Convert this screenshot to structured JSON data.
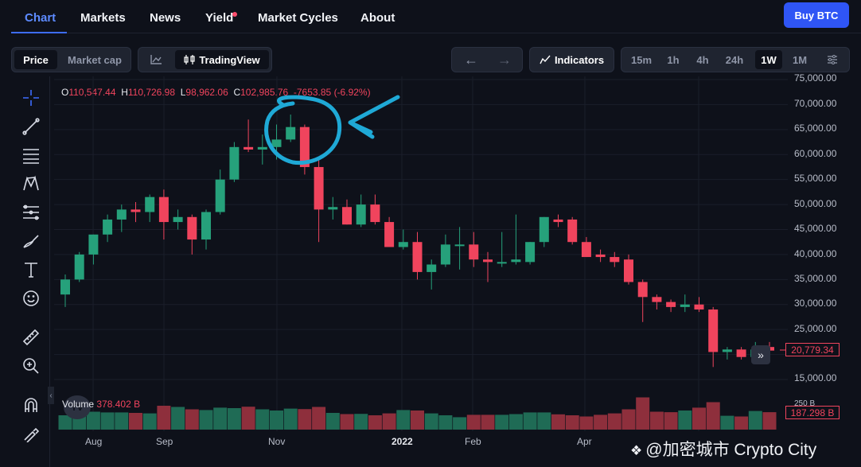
{
  "nav": {
    "items": [
      "Chart",
      "Markets",
      "News",
      "Yield",
      "Market Cycles",
      "About"
    ],
    "active": "Chart",
    "buy_label": "Buy BTC"
  },
  "toolbar": {
    "price_label": "Price",
    "marketcap_label": "Market cap",
    "tradingview_label": "TradingView",
    "indicators_label": "Indicators",
    "timeframes": [
      "15m",
      "1h",
      "4h",
      "24h",
      "1W",
      "1M"
    ],
    "active_timeframe": "1W"
  },
  "ohlc": {
    "o_key": "O",
    "o": "110,547.44",
    "h_key": "H",
    "h": "110,726.98",
    "l_key": "L",
    "l": "98,962.06",
    "c_key": "C",
    "c": "102,985.76",
    "change": "-7653.85 (-6.92%)"
  },
  "volume": {
    "label": "Volume",
    "value": "378.402 B"
  },
  "price_axis": {
    "ticks": [
      "75,000.00",
      "70,000.00",
      "65,000.00",
      "60,000.00",
      "55,000.00",
      "50,000.00",
      "45,000.00",
      "40,000.00",
      "35,000.00",
      "30,000.00",
      "25,000.00",
      "15,000.00"
    ],
    "last_price": "20,779.34",
    "volume_tag": "187.298 B",
    "vol_tick": "250 B"
  },
  "time_axis": [
    "Aug",
    "Sep",
    "Nov",
    "2022",
    "Feb",
    "Apr"
  ],
  "watermark": "@加密城市 Crypto City",
  "colors": {
    "up": "#26a17b",
    "down": "#f0445d",
    "annotation": "#1fa9d6",
    "accent": "#2f55f5"
  },
  "chart_data": {
    "type": "candlestick",
    "ylim": [
      15000,
      75000
    ],
    "candles": [
      {
        "o": 32000,
        "h": 36000,
        "l": 29500,
        "c": 35000
      },
      {
        "o": 35000,
        "h": 40500,
        "l": 34500,
        "c": 40000
      },
      {
        "o": 40000,
        "h": 44000,
        "l": 38000,
        "c": 44000
      },
      {
        "o": 44000,
        "h": 48000,
        "l": 42500,
        "c": 47000
      },
      {
        "o": 47000,
        "h": 50000,
        "l": 44500,
        "c": 49000
      },
      {
        "o": 49000,
        "h": 50500,
        "l": 46500,
        "c": 48500
      },
      {
        "o": 48500,
        "h": 52000,
        "l": 46500,
        "c": 51500
      },
      {
        "o": 51500,
        "h": 53000,
        "l": 43000,
        "c": 46500
      },
      {
        "o": 46500,
        "h": 49000,
        "l": 45000,
        "c": 47500
      },
      {
        "o": 47500,
        "h": 48000,
        "l": 40000,
        "c": 43000
      },
      {
        "o": 43000,
        "h": 49000,
        "l": 41000,
        "c": 48500
      },
      {
        "o": 48500,
        "h": 57000,
        "l": 48000,
        "c": 55000
      },
      {
        "o": 55000,
        "h": 62500,
        "l": 54500,
        "c": 61500
      },
      {
        "o": 61500,
        "h": 67000,
        "l": 60500,
        "c": 61000
      },
      {
        "o": 61000,
        "h": 64000,
        "l": 58000,
        "c": 61500
      },
      {
        "o": 61500,
        "h": 66000,
        "l": 59000,
        "c": 63000
      },
      {
        "o": 63000,
        "h": 68000,
        "l": 62500,
        "c": 65500
      },
      {
        "o": 65500,
        "h": 66000,
        "l": 56000,
        "c": 57500
      },
      {
        "o": 57500,
        "h": 59000,
        "l": 42500,
        "c": 49000
      },
      {
        "o": 49000,
        "h": 51500,
        "l": 47000,
        "c": 49500
      },
      {
        "o": 49500,
        "h": 51000,
        "l": 46000,
        "c": 46000
      },
      {
        "o": 46000,
        "h": 52000,
        "l": 45500,
        "c": 50000
      },
      {
        "o": 50000,
        "h": 52000,
        "l": 46000,
        "c": 46500
      },
      {
        "o": 46500,
        "h": 47500,
        "l": 41500,
        "c": 41500
      },
      {
        "o": 41500,
        "h": 45000,
        "l": 41000,
        "c": 42500
      },
      {
        "o": 42500,
        "h": 44500,
        "l": 35000,
        "c": 36500
      },
      {
        "o": 36500,
        "h": 39000,
        "l": 33000,
        "c": 38000
      },
      {
        "o": 38000,
        "h": 44000,
        "l": 37500,
        "c": 42000
      },
      {
        "o": 42000,
        "h": 45500,
        "l": 37000,
        "c": 42000
      },
      {
        "o": 42000,
        "h": 44500,
        "l": 37500,
        "c": 39000
      },
      {
        "o": 39000,
        "h": 40500,
        "l": 34500,
        "c": 38500
      },
      {
        "o": 38500,
        "h": 44500,
        "l": 37500,
        "c": 38500
      },
      {
        "o": 38500,
        "h": 48000,
        "l": 38000,
        "c": 39000
      },
      {
        "o": 38500,
        "h": 42500,
        "l": 38000,
        "c": 42500
      },
      {
        "o": 42500,
        "h": 47500,
        "l": 41500,
        "c": 47500
      },
      {
        "o": 47000,
        "h": 48000,
        "l": 45500,
        "c": 46500
      },
      {
        "o": 47000,
        "h": 47500,
        "l": 42000,
        "c": 42500
      },
      {
        "o": 42500,
        "h": 43500,
        "l": 39500,
        "c": 39500
      },
      {
        "o": 40000,
        "h": 41000,
        "l": 38500,
        "c": 39500
      },
      {
        "o": 39500,
        "h": 40500,
        "l": 37500,
        "c": 38500
      },
      {
        "o": 39000,
        "h": 40000,
        "l": 34000,
        "c": 34500
      },
      {
        "o": 34500,
        "h": 35000,
        "l": 26500,
        "c": 31500
      },
      {
        "o": 31500,
        "h": 32000,
        "l": 29000,
        "c": 30500
      },
      {
        "o": 30500,
        "h": 31000,
        "l": 28500,
        "c": 29500
      },
      {
        "o": 29500,
        "h": 32000,
        "l": 28500,
        "c": 30000
      },
      {
        "o": 30000,
        "h": 31500,
        "l": 28500,
        "c": 29000
      },
      {
        "o": 29000,
        "h": 29500,
        "l": 17500,
        "c": 20500
      },
      {
        "o": 20500,
        "h": 21500,
        "l": 19000,
        "c": 21000
      },
      {
        "o": 21000,
        "h": 21500,
        "l": 19000,
        "c": 19500
      },
      {
        "o": 19500,
        "h": 22500,
        "l": 18500,
        "c": 21000
      },
      {
        "o": 21500,
        "h": 22500,
        "l": 19500,
        "c": 20779
      }
    ],
    "volumes": [
      0.6,
      0.7,
      0.75,
      0.72,
      0.72,
      0.7,
      0.68,
      1.0,
      0.95,
      0.85,
      0.82,
      0.92,
      0.9,
      0.96,
      0.85,
      0.8,
      0.88,
      0.86,
      0.95,
      0.7,
      0.65,
      0.66,
      0.6,
      0.68,
      0.82,
      0.8,
      0.68,
      0.6,
      0.52,
      0.62,
      0.62,
      0.62,
      0.65,
      0.72,
      0.72,
      0.64,
      0.6,
      0.55,
      0.62,
      0.68,
      0.85,
      1.35,
      0.75,
      0.73,
      0.8,
      0.92,
      1.15,
      0.58,
      0.55,
      0.78,
      0.73
    ]
  }
}
